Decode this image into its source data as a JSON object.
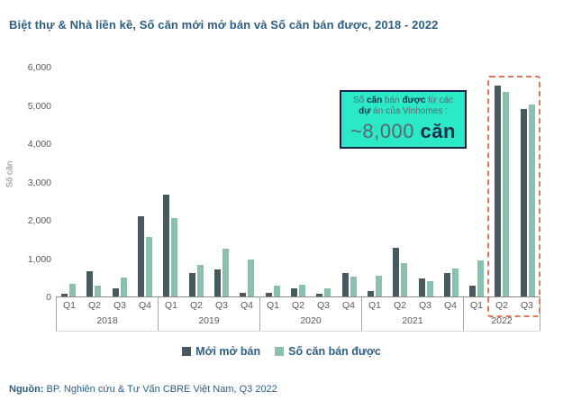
{
  "title": "Biệt thự & Nhà liền kề, Số căn mới mở bán và Số căn bán được, 2018 - 2022",
  "source": {
    "label": "Nguồn:",
    "text": " BP. Nghiên cứu & Tư Vấn CBRE Việt Nam, Q3 2022"
  },
  "callout": {
    "seg1": "Số ",
    "seg2": "căn",
    "seg3": " bán ",
    "seg4": "được",
    "seg5": " từ các",
    "seg6": "dự",
    "seg7": " án của Vinhomes :",
    "big_value": "~8,000 ",
    "big_unit": "căn"
  },
  "colors": {
    "title_text": "#2E5F82",
    "dark_series": "#475B5E",
    "light_series": "#8CC0AE",
    "highlight_dashed": "#DC7B5F",
    "callout_bg": "#2BE9C4",
    "callout_border": "#16234D",
    "axis_text": "#595959"
  },
  "chart_data": {
    "type": "bar",
    "title": "Biệt thự & Nhà liền kề, Số căn mới mở bán và Số căn bán được, 2018 - 2022",
    "ylabel": "Số căn",
    "xlabel": "",
    "ylim": [
      0,
      6000
    ],
    "ytick_step": 1000,
    "yticks": [
      "6,000",
      "5,000",
      "4,000",
      "3,000",
      "2,000",
      "1,000",
      "0"
    ],
    "grid": false,
    "legend_position": "bottom",
    "years": [
      {
        "label": "2018",
        "quarters": [
          "Q1",
          "Q2",
          "Q3",
          "Q4"
        ]
      },
      {
        "label": "2019",
        "quarters": [
          "Q1",
          "Q2",
          "Q3",
          "Q4"
        ]
      },
      {
        "label": "2020",
        "quarters": [
          "Q1",
          "Q2",
          "Q3",
          "Q4"
        ]
      },
      {
        "label": "2021",
        "quarters": [
          "Q1",
          "Q2",
          "Q3",
          "Q4"
        ]
      },
      {
        "label": "2022",
        "quarters": [
          "Q1",
          "Q2",
          "Q3"
        ]
      }
    ],
    "categories": [
      "2018 Q1",
      "2018 Q2",
      "2018 Q3",
      "2018 Q4",
      "2019 Q1",
      "2019 Q2",
      "2019 Q3",
      "2019 Q4",
      "2020 Q1",
      "2020 Q2",
      "2020 Q3",
      "2020 Q4",
      "2021 Q1",
      "2021 Q2",
      "2021 Q3",
      "2021 Q4",
      "2022 Q1",
      "2022 Q2",
      "2022 Q3"
    ],
    "series": [
      {
        "name": "Mới mở bán",
        "color": "#475B5E",
        "values": [
          80,
          670,
          200,
          2100,
          2650,
          600,
          710,
          100,
          100,
          200,
          60,
          600,
          130,
          1270,
          460,
          610,
          290,
          5500,
          4900
        ]
      },
      {
        "name": "Số căn bán được",
        "color": "#8CC0AE",
        "values": [
          330,
          290,
          500,
          1550,
          2050,
          830,
          1250,
          970,
          290,
          300,
          220,
          520,
          550,
          880,
          410,
          740,
          950,
          5350,
          5000
        ]
      }
    ],
    "highlight": {
      "categories": [
        "2022 Q2",
        "2022 Q3"
      ],
      "style": "red-dashed-box"
    }
  }
}
